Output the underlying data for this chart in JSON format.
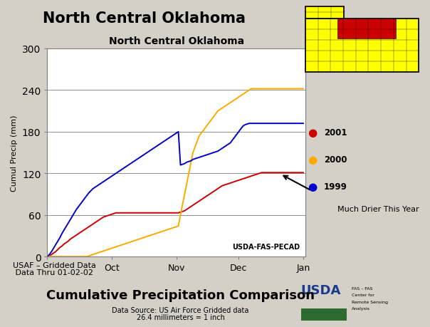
{
  "title_main": "North Central Oklahoma",
  "chart_title": "North Central Oklahoma",
  "ylabel": "Cumul Precip (mm)",
  "ylim": [
    0,
    300
  ],
  "yticks": [
    0,
    60,
    120,
    180,
    240,
    300
  ],
  "x_tick_pos": [
    0,
    31,
    62,
    92,
    123
  ],
  "x_tick_labels": [
    "",
    "Oct",
    "Nov",
    "Dec",
    "Jan"
  ],
  "xlim": [
    0,
    124
  ],
  "watermark": "USDA-FAS-PECAD",
  "annotation_text": "Much Drier This Year",
  "footer_line1": "USAF – Gridded Data",
  "footer_line2": " Data Thru 01-02-02",
  "footer_title": "Cumulative Precipitation Comparison",
  "footer_sub1": "Data Source: US Air Force Gridded data",
  "footer_sub2": "26.4 millimeters = 1 inch",
  "bg_color": "#d4d0c8",
  "chart_bg": "#ffffff",
  "line_colors": {
    "2001": "#cc0000",
    "2000": "#ffaa00",
    "1999": "#0000cc"
  },
  "legend_labels": [
    "2001",
    "2000",
    "1999"
  ],
  "total_days": 124,
  "series_2001": [
    0,
    1,
    3,
    5,
    7,
    10,
    13,
    15,
    18,
    20,
    22,
    25,
    27,
    29,
    31,
    33,
    35,
    37,
    39,
    41,
    43,
    45,
    47,
    49,
    51,
    53,
    55,
    57,
    58,
    59,
    60,
    61,
    62,
    63,
    63,
    63,
    63,
    63,
    63,
    63,
    63,
    63,
    63,
    63,
    63,
    63,
    63,
    63,
    63,
    63,
    63,
    63,
    63,
    63,
    63,
    63,
    63,
    63,
    63,
    63,
    63,
    63,
    63,
    63,
    64,
    65,
    66,
    68,
    70,
    72,
    74,
    76,
    78,
    80,
    82,
    84,
    86,
    88,
    90,
    92,
    94,
    96,
    98,
    100,
    102,
    103,
    104,
    105,
    106,
    107,
    108,
    109,
    110,
    111,
    112,
    113,
    114,
    115,
    116,
    117,
    118,
    119,
    120,
    121,
    121,
    121,
    121,
    121,
    121,
    121,
    121,
    121,
    121,
    121,
    121,
    121,
    121,
    121,
    121,
    121,
    121,
    121,
    121,
    121
  ],
  "series_2000": [
    0,
    0,
    0,
    0,
    0,
    0,
    0,
    0,
    0,
    0,
    0,
    0,
    0,
    0,
    0,
    0,
    0,
    0,
    0,
    0,
    1,
    2,
    3,
    4,
    5,
    6,
    7,
    8,
    9,
    10,
    11,
    12,
    13,
    14,
    15,
    16,
    17,
    18,
    19,
    20,
    21,
    22,
    23,
    24,
    25,
    26,
    27,
    28,
    29,
    30,
    31,
    32,
    33,
    34,
    35,
    36,
    37,
    38,
    39,
    40,
    41,
    42,
    43,
    44,
    60,
    75,
    90,
    105,
    120,
    135,
    150,
    158,
    166,
    174,
    178,
    182,
    186,
    190,
    194,
    198,
    202,
    206,
    210,
    212,
    214,
    216,
    218,
    220,
    222,
    224,
    226,
    228,
    230,
    232,
    234,
    236,
    238,
    240,
    242,
    242,
    242,
    242,
    242,
    242,
    242,
    242,
    242,
    242,
    242,
    242,
    242,
    242,
    242,
    242,
    242,
    242,
    242,
    242,
    242,
    242,
    242,
    242,
    242,
    242
  ],
  "series_1999": [
    0,
    3,
    7,
    12,
    17,
    22,
    27,
    33,
    38,
    43,
    48,
    53,
    58,
    63,
    68,
    72,
    76,
    80,
    84,
    88,
    92,
    95,
    98,
    100,
    102,
    104,
    106,
    108,
    110,
    112,
    114,
    116,
    118,
    120,
    122,
    124,
    126,
    128,
    130,
    132,
    134,
    136,
    138,
    140,
    142,
    144,
    146,
    148,
    150,
    152,
    154,
    156,
    158,
    160,
    162,
    164,
    166,
    168,
    170,
    172,
    174,
    176,
    178,
    180,
    132,
    133,
    134,
    136,
    137,
    138,
    140,
    141,
    142,
    143,
    144,
    145,
    146,
    147,
    148,
    149,
    150,
    151,
    152,
    154,
    156,
    158,
    160,
    162,
    164,
    168,
    172,
    176,
    180,
    184,
    188,
    190,
    191,
    192,
    192,
    192,
    192,
    192,
    192,
    192,
    192,
    192,
    192,
    192,
    192,
    192,
    192,
    192,
    192,
    192,
    192,
    192,
    192,
    192,
    192,
    192,
    192,
    192,
    192,
    192
  ]
}
